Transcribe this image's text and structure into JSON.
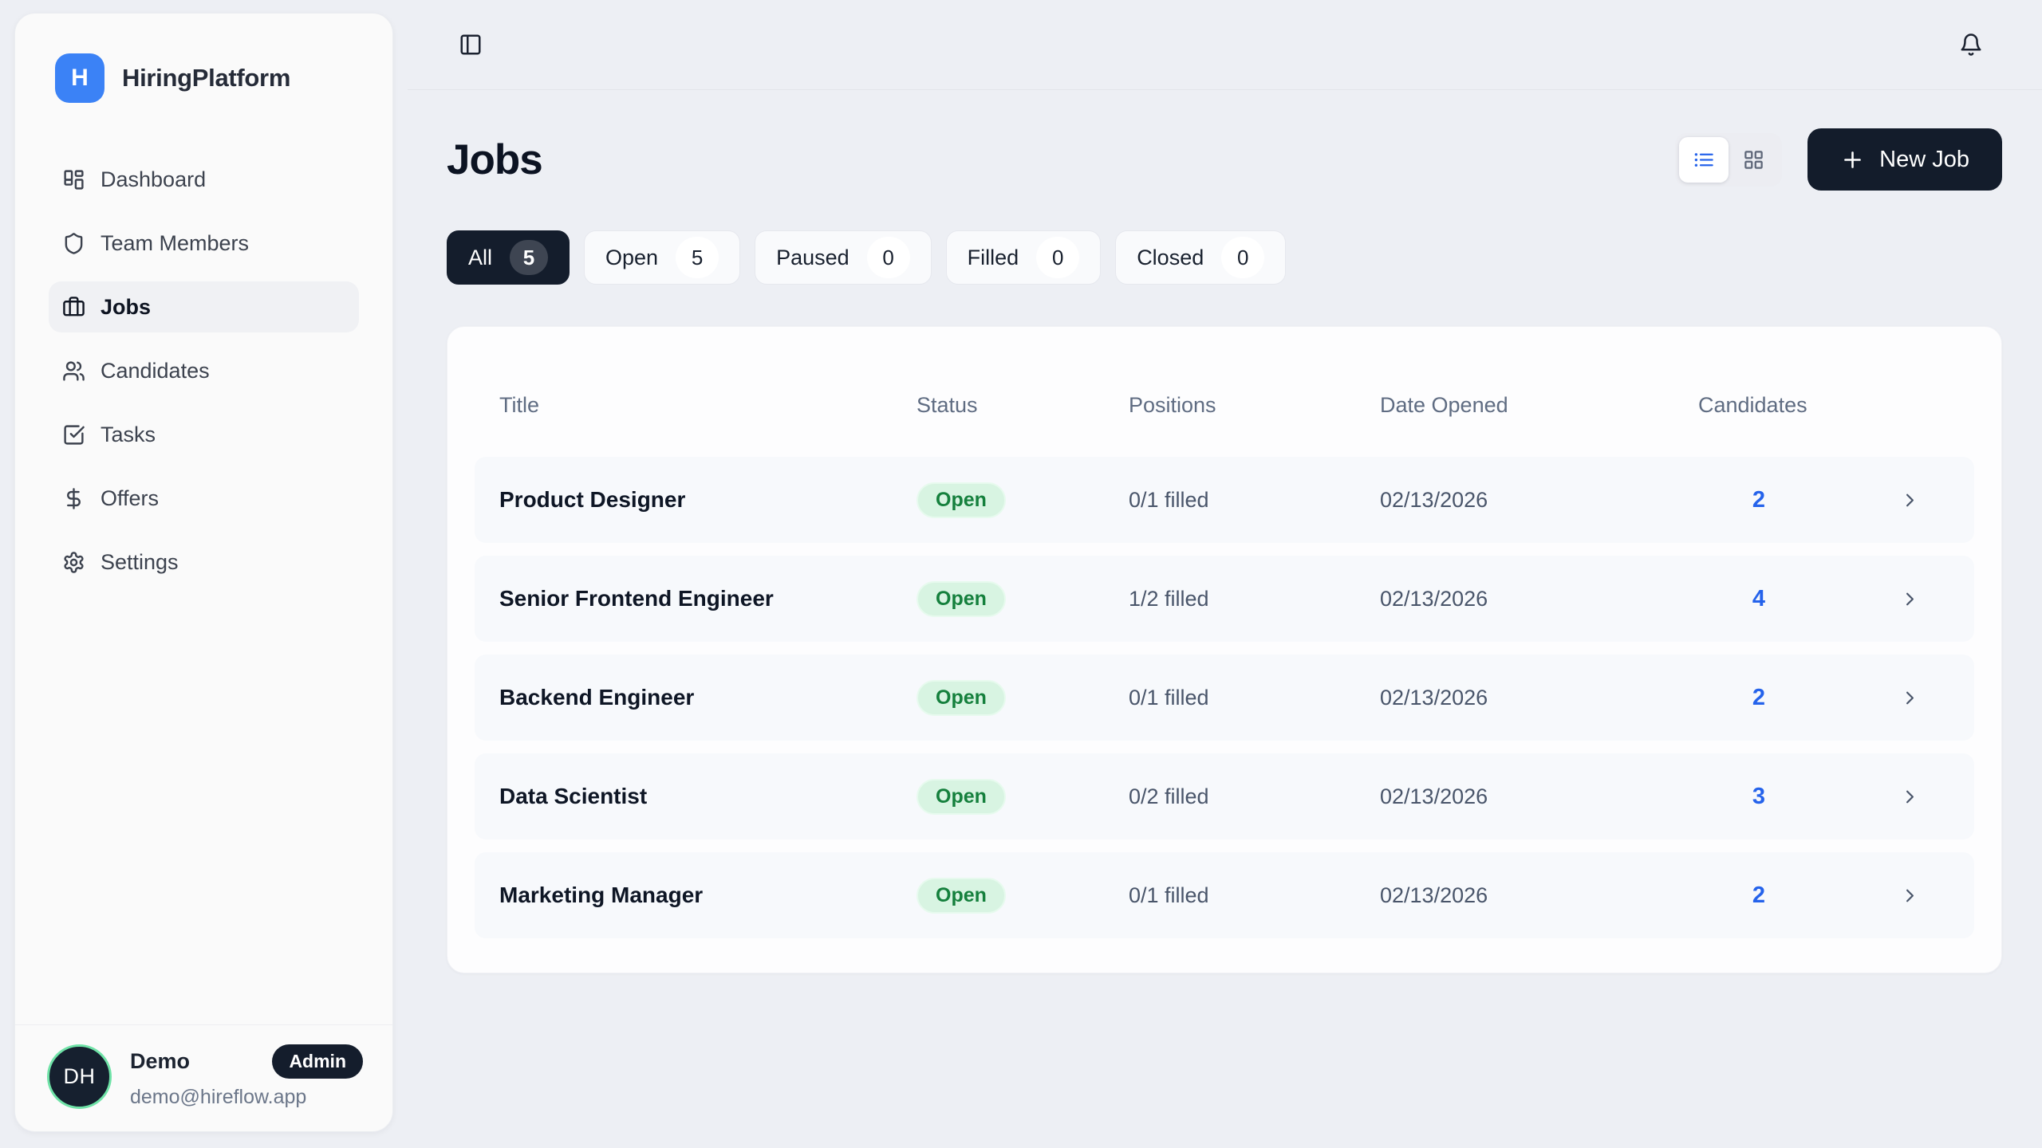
{
  "brand": {
    "logo_letter": "H",
    "name": "HiringPlatform"
  },
  "sidebar": {
    "items": [
      {
        "label": "Dashboard",
        "icon": "layout-dashboard",
        "active": false
      },
      {
        "label": "Team Members",
        "icon": "shield",
        "active": false
      },
      {
        "label": "Jobs",
        "icon": "briefcase",
        "active": true
      },
      {
        "label": "Candidates",
        "icon": "users",
        "active": false
      },
      {
        "label": "Tasks",
        "icon": "square-check",
        "active": false
      },
      {
        "label": "Offers",
        "icon": "dollar-sign",
        "active": false
      },
      {
        "label": "Settings",
        "icon": "settings",
        "active": false
      }
    ]
  },
  "user": {
    "initials": "DH",
    "name": "Demo",
    "role": "Admin",
    "email": "demo@hireflow.app"
  },
  "page": {
    "title": "Jobs",
    "new_job_label": "New Job"
  },
  "filters": [
    {
      "label": "All",
      "count": "5",
      "active": true
    },
    {
      "label": "Open",
      "count": "5",
      "active": false
    },
    {
      "label": "Paused",
      "count": "0",
      "active": false
    },
    {
      "label": "Filled",
      "count": "0",
      "active": false
    },
    {
      "label": "Closed",
      "count": "0",
      "active": false
    }
  ],
  "table": {
    "columns": [
      "Title",
      "Status",
      "Positions",
      "Date Opened",
      "Candidates"
    ],
    "rows": [
      {
        "title": "Product Designer",
        "status": "Open",
        "positions": "0/1 filled",
        "date_opened": "02/13/2026",
        "candidates": "2"
      },
      {
        "title": "Senior Frontend Engineer",
        "status": "Open",
        "positions": "1/2 filled",
        "date_opened": "02/13/2026",
        "candidates": "4"
      },
      {
        "title": "Backend Engineer",
        "status": "Open",
        "positions": "0/1 filled",
        "date_opened": "02/13/2026",
        "candidates": "2"
      },
      {
        "title": "Data Scientist",
        "status": "Open",
        "positions": "0/2 filled",
        "date_opened": "02/13/2026",
        "candidates": "3"
      },
      {
        "title": "Marketing Manager",
        "status": "Open",
        "positions": "0/1 filled",
        "date_opened": "02/13/2026",
        "candidates": "2"
      }
    ]
  },
  "colors": {
    "brand_blue": "#3b82f6",
    "accent_blue": "#2563eb",
    "dark_navy": "#141d2c",
    "status_open_bg": "#d8f4e2",
    "status_open_text": "#15803d",
    "avatar_ring": "#6fe2a7"
  }
}
